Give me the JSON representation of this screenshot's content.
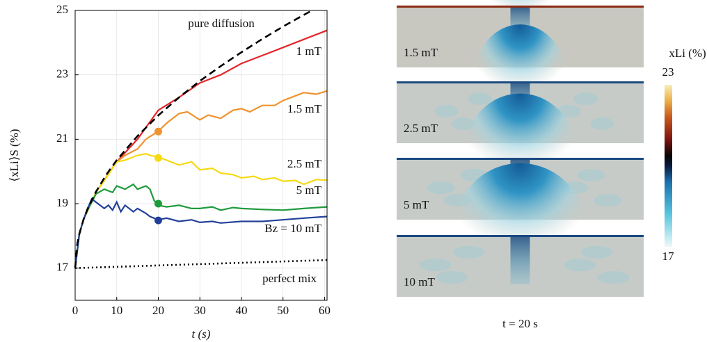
{
  "chart_data": [
    {
      "type": "line",
      "xlabel": "t (s)",
      "ylabel": "⟨xLi⟩S (%)",
      "xlim": [
        0,
        60.6
      ],
      "ylim": [
        16,
        25
      ],
      "xticks": [
        0,
        10,
        20,
        30,
        40,
        50,
        60
      ],
      "yticks": [
        17,
        19,
        21,
        23,
        25
      ],
      "grid": true,
      "series": [
        {
          "name": "pure diffusion",
          "color": "#000000",
          "dash": "dashed",
          "x": [
            0,
            0.5,
            1,
            2,
            3,
            5,
            7.5,
            10,
            15,
            20,
            25,
            30,
            35,
            40,
            45,
            50,
            55,
            57
          ],
          "values": [
            17,
            17.75,
            18.06,
            18.5,
            18.84,
            19.37,
            19.9,
            20.35,
            21.1,
            21.74,
            22.3,
            22.81,
            23.27,
            23.7,
            24.11,
            24.5,
            24.86,
            25.0
          ]
        },
        {
          "name": "1 mT",
          "color": "#e3262b",
          "dash": "solid",
          "x": [
            0,
            1,
            2,
            5,
            10,
            15,
            20,
            25,
            30,
            35,
            40,
            45,
            50,
            55,
            60.6
          ],
          "values": [
            17,
            18.06,
            18.5,
            19.35,
            20.3,
            21.0,
            21.9,
            22.3,
            22.75,
            23.0,
            23.35,
            23.6,
            23.85,
            24.1,
            24.38
          ]
        },
        {
          "name": "1.5 mT",
          "color": "#f0922e",
          "dash": "solid",
          "x": [
            0,
            1,
            2,
            5,
            10,
            12,
            15,
            17,
            20,
            22,
            25,
            27,
            30,
            32,
            35,
            38,
            40,
            42,
            45,
            48,
            50,
            53,
            55,
            58,
            60.6
          ],
          "values": [
            17,
            18.06,
            18.5,
            19.35,
            20.3,
            20.5,
            20.7,
            21.0,
            21.25,
            21.5,
            21.8,
            21.85,
            21.6,
            21.75,
            21.65,
            21.9,
            21.95,
            21.85,
            22.05,
            22.05,
            22.2,
            22.35,
            22.45,
            22.4,
            22.5
          ],
          "marker": {
            "x": 20,
            "y": 21.24
          }
        },
        {
          "name": "2.5 mT",
          "color": "#f6da12",
          "dash": "solid",
          "x": [
            0,
            1,
            2,
            5,
            8,
            10,
            12,
            15,
            17,
            18,
            20,
            22,
            25,
            28,
            30,
            33,
            35,
            38,
            40,
            43,
            45,
            48,
            50,
            53,
            55,
            58,
            60.6
          ],
          "values": [
            17,
            18.06,
            18.5,
            19.35,
            19.9,
            20.3,
            20.35,
            20.5,
            20.55,
            20.5,
            20.45,
            20.35,
            20.2,
            20.3,
            20.05,
            20.1,
            19.95,
            19.9,
            19.8,
            19.85,
            19.75,
            19.8,
            19.7,
            19.72,
            19.6,
            19.75,
            19.73
          ],
          "marker": {
            "x": 20,
            "y": 20.42
          }
        },
        {
          "name": "5 mT",
          "color": "#1f9a3c",
          "dash": "solid",
          "x": [
            0,
            1,
            2,
            3,
            5,
            7,
            9,
            10,
            12,
            14,
            15,
            17,
            18,
            19,
            20,
            22,
            25,
            28,
            30,
            33,
            35,
            38,
            40,
            45,
            50,
            55,
            60.6
          ],
          "values": [
            17,
            18.06,
            18.5,
            18.8,
            19.3,
            19.45,
            19.35,
            19.55,
            19.45,
            19.6,
            19.45,
            19.55,
            19.45,
            19.1,
            18.95,
            18.9,
            18.95,
            18.85,
            18.85,
            18.9,
            18.8,
            18.88,
            18.85,
            18.82,
            18.8,
            18.85,
            18.9
          ],
          "marker": {
            "x": 20,
            "y": 19.0
          }
        },
        {
          "name": "Bz = 10 mT",
          "color": "#22409a",
          "dash": "solid",
          "x": [
            0,
            1,
            2,
            3,
            4,
            5,
            7,
            8,
            9,
            10,
            11,
            12,
            14,
            15,
            17,
            18,
            20,
            22,
            25,
            28,
            30,
            33,
            35,
            40,
            45,
            50,
            55,
            60.6
          ],
          "values": [
            17,
            18.06,
            18.5,
            18.85,
            19.15,
            19.05,
            18.85,
            18.95,
            18.8,
            19.05,
            18.75,
            18.95,
            18.75,
            18.85,
            18.7,
            18.6,
            18.5,
            18.55,
            18.45,
            18.5,
            18.42,
            18.45,
            18.4,
            18.45,
            18.45,
            18.5,
            18.55,
            18.6
          ],
          "marker": {
            "x": 20,
            "y": 18.48
          }
        },
        {
          "name": "perfect mix",
          "color": "#000000",
          "dash": "dotted",
          "x": [
            0,
            60.6
          ],
          "values": [
            17,
            17.25
          ]
        }
      ]
    },
    {
      "type": "image",
      "panels": [
        "1.5 mT",
        "2.5 mT",
        "5 mT",
        "10 mT"
      ],
      "xlabel": "t = 20 s",
      "colorbar": {
        "label": "xLi (%)",
        "lim": [
          17,
          23
        ],
        "ticks": [
          17,
          23
        ]
      }
    }
  ]
}
